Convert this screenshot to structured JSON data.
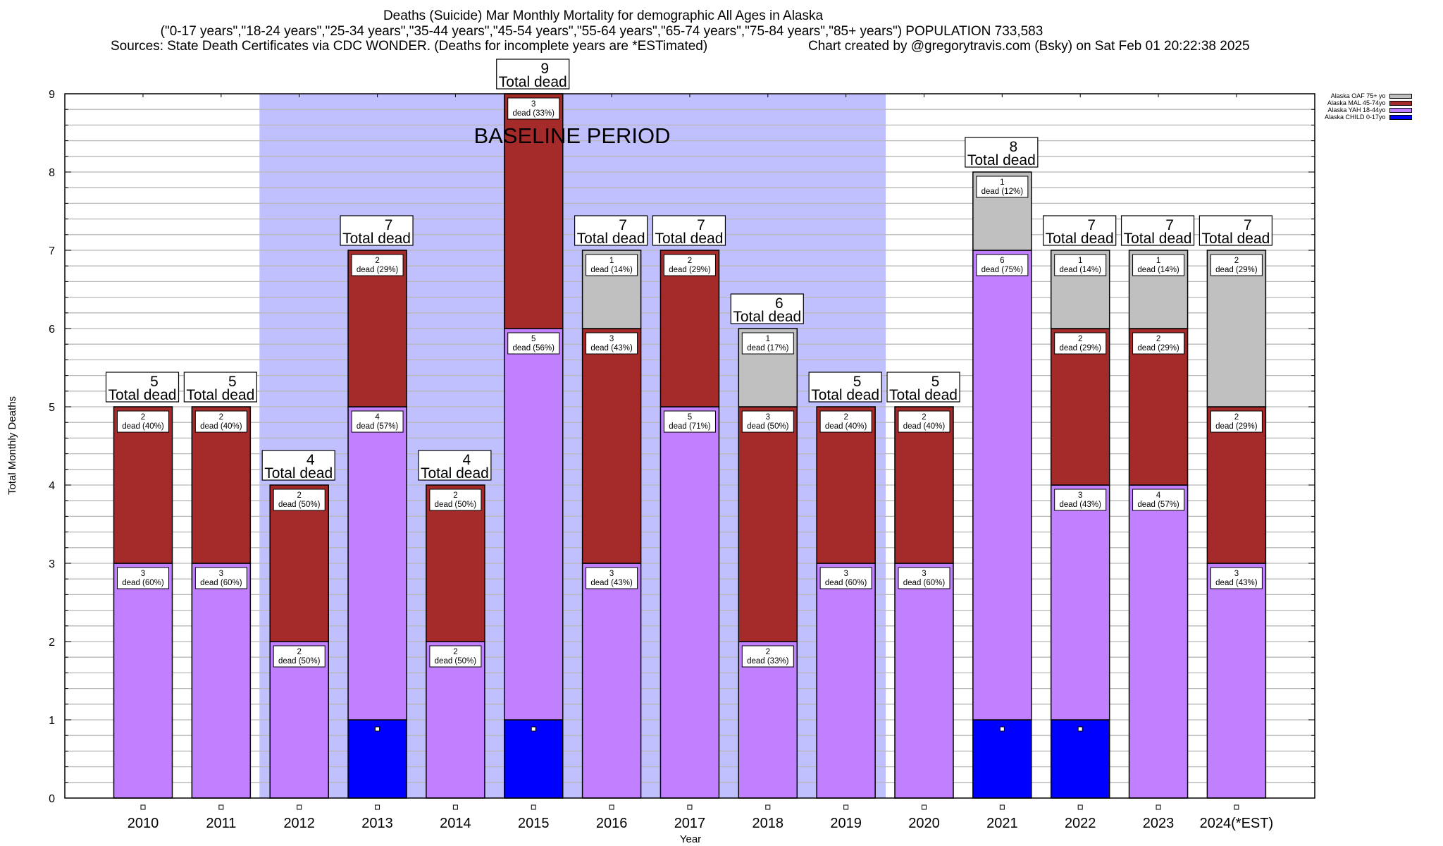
{
  "header": {
    "title": "Deaths (Suicide) Mar Monthly Mortality for demographic All Ages in Alaska",
    "subtitle": "(\"0-17 years\",\"18-24 years\",\"25-34 years\",\"35-44 years\",\"45-54 years\",\"55-64 years\",\"65-74 years\",\"75-84 years\",\"85+ years\") POPULATION 733,583",
    "sources": "Sources: State Death Certificates via CDC WONDER. (Deaths for incomplete years are *ESTimated)",
    "credit": "Chart created by @gregorytravis.com (Bsky) on Sat Feb 01 20:22:38 2025"
  },
  "chart_data": {
    "type": "bar",
    "stacked": true,
    "title": "Deaths (Suicide) Mar Monthly Mortality for demographic All Ages in Alaska",
    "xlabel": "Year",
    "ylabel": "Total Monthly Deaths",
    "ylim": [
      0,
      9
    ],
    "yticks": [
      "0",
      "1",
      "2",
      "3",
      "4",
      "5",
      "6",
      "7",
      "8",
      "9"
    ],
    "grid": true,
    "legend_position": "top-right",
    "categories": [
      "2010",
      "2011",
      "2012",
      "2013",
      "2014",
      "2015",
      "2016",
      "2017",
      "2018",
      "2019",
      "2020",
      "2021",
      "2022",
      "2023",
      "2024(*EST)"
    ],
    "series": [
      {
        "name": "Alaska CHILD 0-17yo",
        "color": "#0000ff",
        "values": [
          0,
          0,
          0,
          1,
          0,
          1,
          0,
          0,
          0,
          0,
          0,
          1,
          1,
          0,
          0
        ],
        "labels": [
          "",
          "",
          "",
          "",
          "",
          "",
          "",
          "",
          "",
          "",
          "",
          "",
          "",
          "",
          ""
        ]
      },
      {
        "name": "Alaska YAH 18-44yo",
        "color": "#c080ff",
        "values": [
          3,
          3,
          2,
          4,
          2,
          5,
          3,
          5,
          2,
          3,
          3,
          6,
          3,
          4,
          3
        ],
        "labels": [
          "dead (60%)",
          "dead (60%)",
          "dead (50%)",
          "dead (57%)",
          "dead (50%)",
          "dead (56%)",
          "dead (43%)",
          "dead (71%)",
          "dead (33%)",
          "dead (60%)",
          "dead (60%)",
          "dead (75%)",
          "dead (43%)",
          "dead (57%)",
          "dead (43%)"
        ]
      },
      {
        "name": "Alaska MAL 45-74yo",
        "color": "#a52a2a",
        "values": [
          2,
          2,
          2,
          2,
          2,
          3,
          3,
          2,
          3,
          2,
          2,
          0,
          2,
          2,
          2
        ],
        "labels": [
          "dead (40%)",
          "dead (40%)",
          "dead (50%)",
          "dead (29%)",
          "dead (50%)",
          "dead (33%)",
          "dead (43%)",
          "dead (29%)",
          "dead (50%)",
          "dead (40%)",
          "dead (40%)",
          "",
          "dead (29%)",
          "dead (29%)",
          "dead (29%)"
        ]
      },
      {
        "name": "Alaska OAF 75+ yo",
        "color": "#c0c0c0",
        "values": [
          0,
          0,
          0,
          0,
          0,
          0,
          1,
          0,
          1,
          0,
          0,
          1,
          1,
          1,
          2
        ],
        "labels": [
          "",
          "",
          "",
          "",
          "",
          "",
          "dead (14%)",
          "",
          "dead (17%)",
          "",
          "",
          "dead (12%)",
          "dead (14%)",
          "dead (14%)",
          "dead (29%)"
        ]
      }
    ],
    "totals": [
      5,
      5,
      4,
      7,
      4,
      9,
      7,
      7,
      6,
      5,
      5,
      8,
      7,
      7,
      7
    ],
    "total_label_suffix": "Total dead",
    "annotations": [
      {
        "type": "shaded-region",
        "label": "BASELINE PERIOD",
        "from_category": "2012",
        "to_category": "2019",
        "color": "#c0c0ff"
      }
    ],
    "markers": {
      "child_marker_color": "#ffffff"
    }
  },
  "legend": [
    {
      "label": "Alaska OAF 75+ yo",
      "color": "#c0c0c0"
    },
    {
      "label": "Alaska MAL 45-74yo",
      "color": "#a52a2a"
    },
    {
      "label": "Alaska YAH 18-44yo",
      "color": "#c080ff"
    },
    {
      "label": "Alaska CHILD 0-17yo",
      "color": "#0000ff"
    }
  ]
}
